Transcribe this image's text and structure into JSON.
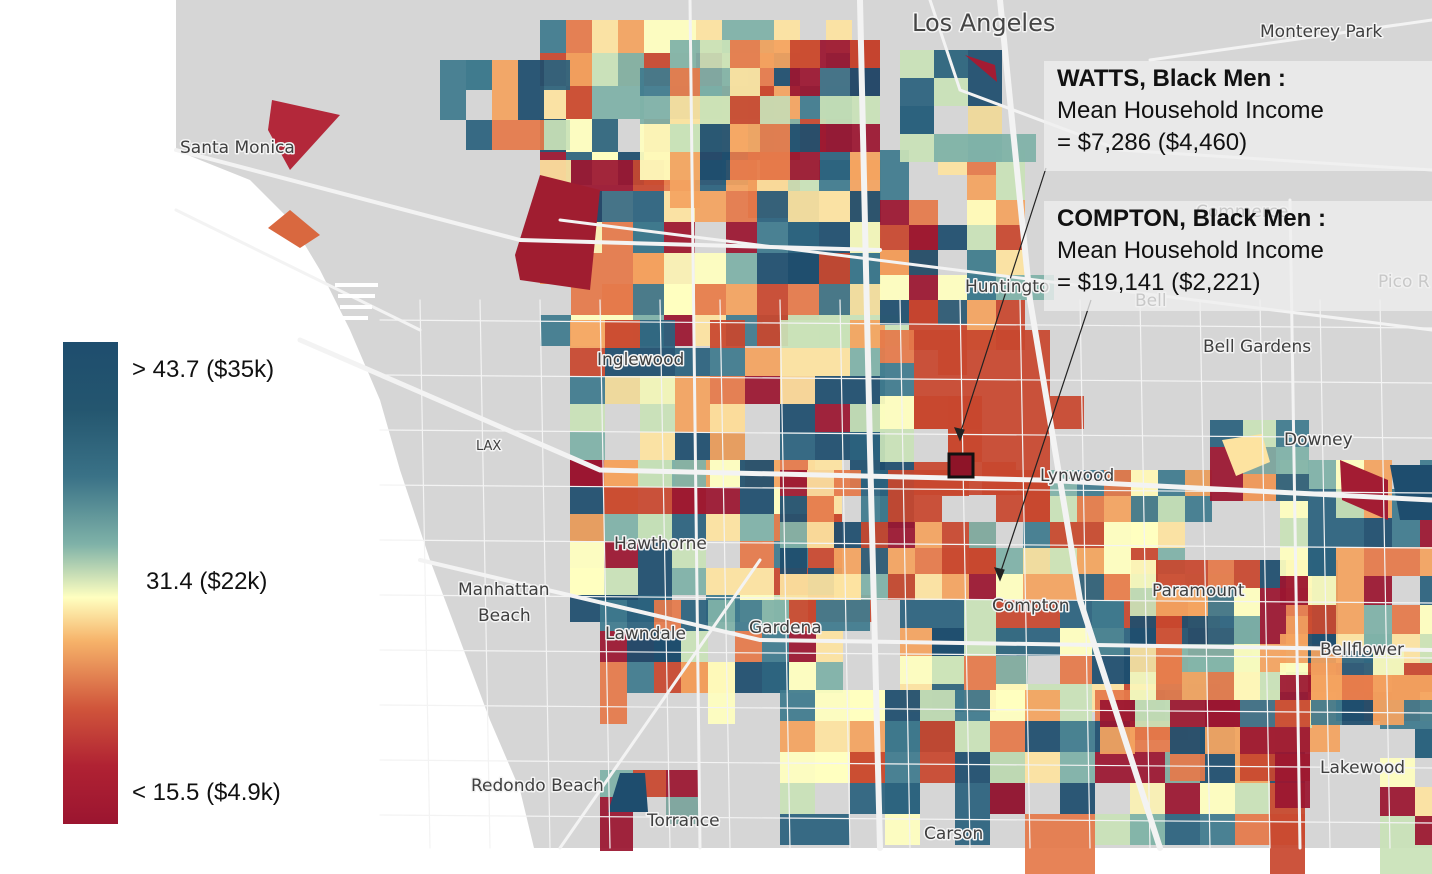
{
  "places": [
    {
      "key": "los_angeles",
      "label": "Los Angeles"
    },
    {
      "key": "monterey_park",
      "label": "Monterey Park"
    },
    {
      "key": "santa_monica",
      "label": "Santa Monica"
    },
    {
      "key": "commerce",
      "label": "Commerce"
    },
    {
      "key": "huntington",
      "label": "Huntingto"
    },
    {
      "key": "bell",
      "label": "Bell"
    },
    {
      "key": "pico",
      "label": "Pico R"
    },
    {
      "key": "inglewood",
      "label": "Inglewood"
    },
    {
      "key": "bell_gardens",
      "label": "Bell Gardens"
    },
    {
      "key": "lax",
      "label": "LAX"
    },
    {
      "key": "downey",
      "label": "Downey"
    },
    {
      "key": "lynwood",
      "label": "Lynwood"
    },
    {
      "key": "hawthorne",
      "label": "Hawthorne"
    },
    {
      "key": "manhattan",
      "label": "Manhattan"
    },
    {
      "key": "beach",
      "label": "Beach"
    },
    {
      "key": "lawndale",
      "label": "Lawndale"
    },
    {
      "key": "gardena",
      "label": "Gardena"
    },
    {
      "key": "compton",
      "label": "Compton"
    },
    {
      "key": "paramount",
      "label": "Paramount"
    },
    {
      "key": "bellflower",
      "label": "Bellflower"
    },
    {
      "key": "lakewood",
      "label": "Lakewood"
    },
    {
      "key": "redondo_beach",
      "label": "Redondo Beach"
    },
    {
      "key": "torrance",
      "label": "Torrance"
    },
    {
      "key": "carson",
      "label": "Carson"
    }
  ],
  "annotations": {
    "watts": {
      "heading": "WATTS, Black Men :",
      "line1": "Mean Household Income",
      "line2": "= $7,286 ($4,460)"
    },
    "compton": {
      "heading": "COMPTON, Black Men :",
      "line1": "Mean Household Income",
      "line2": "= $19,141 ($2,221)"
    }
  },
  "legend": {
    "top_label": "> 43.7 ($35k)",
    "mid_label": "31.4 ($22k)",
    "bottom_label": "< 15.5 ($4.9k)",
    "colors": [
      "#1e4d6e",
      "#2b627e",
      "#3f7b8e",
      "#7fb2a8",
      "#ffffbf",
      "#f4a460",
      "#c8472e",
      "#9b1530"
    ]
  },
  "colors": {
    "water": "#ffffff",
    "land": "#d5d5d5",
    "road": "#f2f2f2",
    "highlight_box": "#111111"
  }
}
